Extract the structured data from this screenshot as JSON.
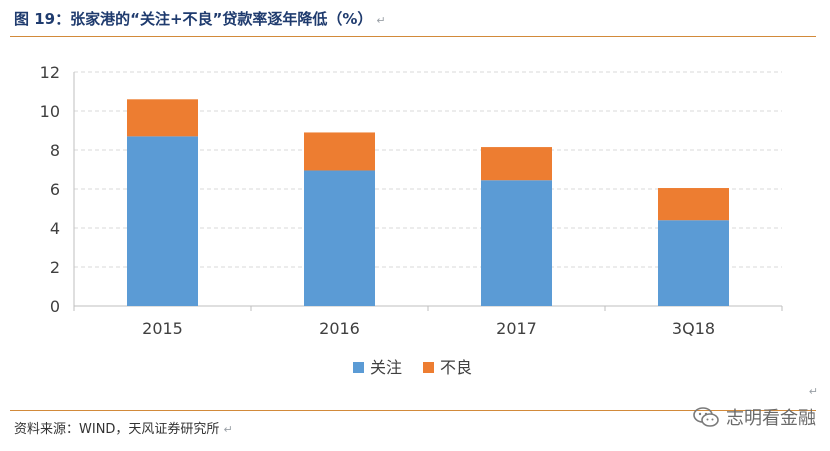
{
  "title": "图 19：张家港的“关注+不良”贷款率逐年降低（%）",
  "title_mark": "↵",
  "source": "资料来源：WIND，天风证券研究所",
  "source_mark": "↵",
  "watermark": "志明看金融",
  "watermark_icon": "wechat-icon",
  "colors": {
    "series1": "#5b9bd5",
    "series2": "#ed7d31",
    "rule": "#d28a3a",
    "title": "#1f3b6e"
  },
  "chart_data": {
    "type": "bar",
    "stacked": true,
    "categories": [
      "2015",
      "2016",
      "2017",
      "3Q18"
    ],
    "series": [
      {
        "name": "关注",
        "values": [
          8.7,
          6.95,
          6.45,
          4.4
        ],
        "color": "#5b9bd5"
      },
      {
        "name": "不良",
        "values": [
          1.9,
          1.95,
          1.7,
          1.65
        ],
        "color": "#ed7d31"
      }
    ],
    "ylim": [
      0,
      12
    ],
    "yticks": [
      0,
      2,
      4,
      6,
      8,
      10,
      12
    ],
    "grid": true,
    "legend": "bottom",
    "title": "",
    "xlabel": "",
    "ylabel": ""
  }
}
